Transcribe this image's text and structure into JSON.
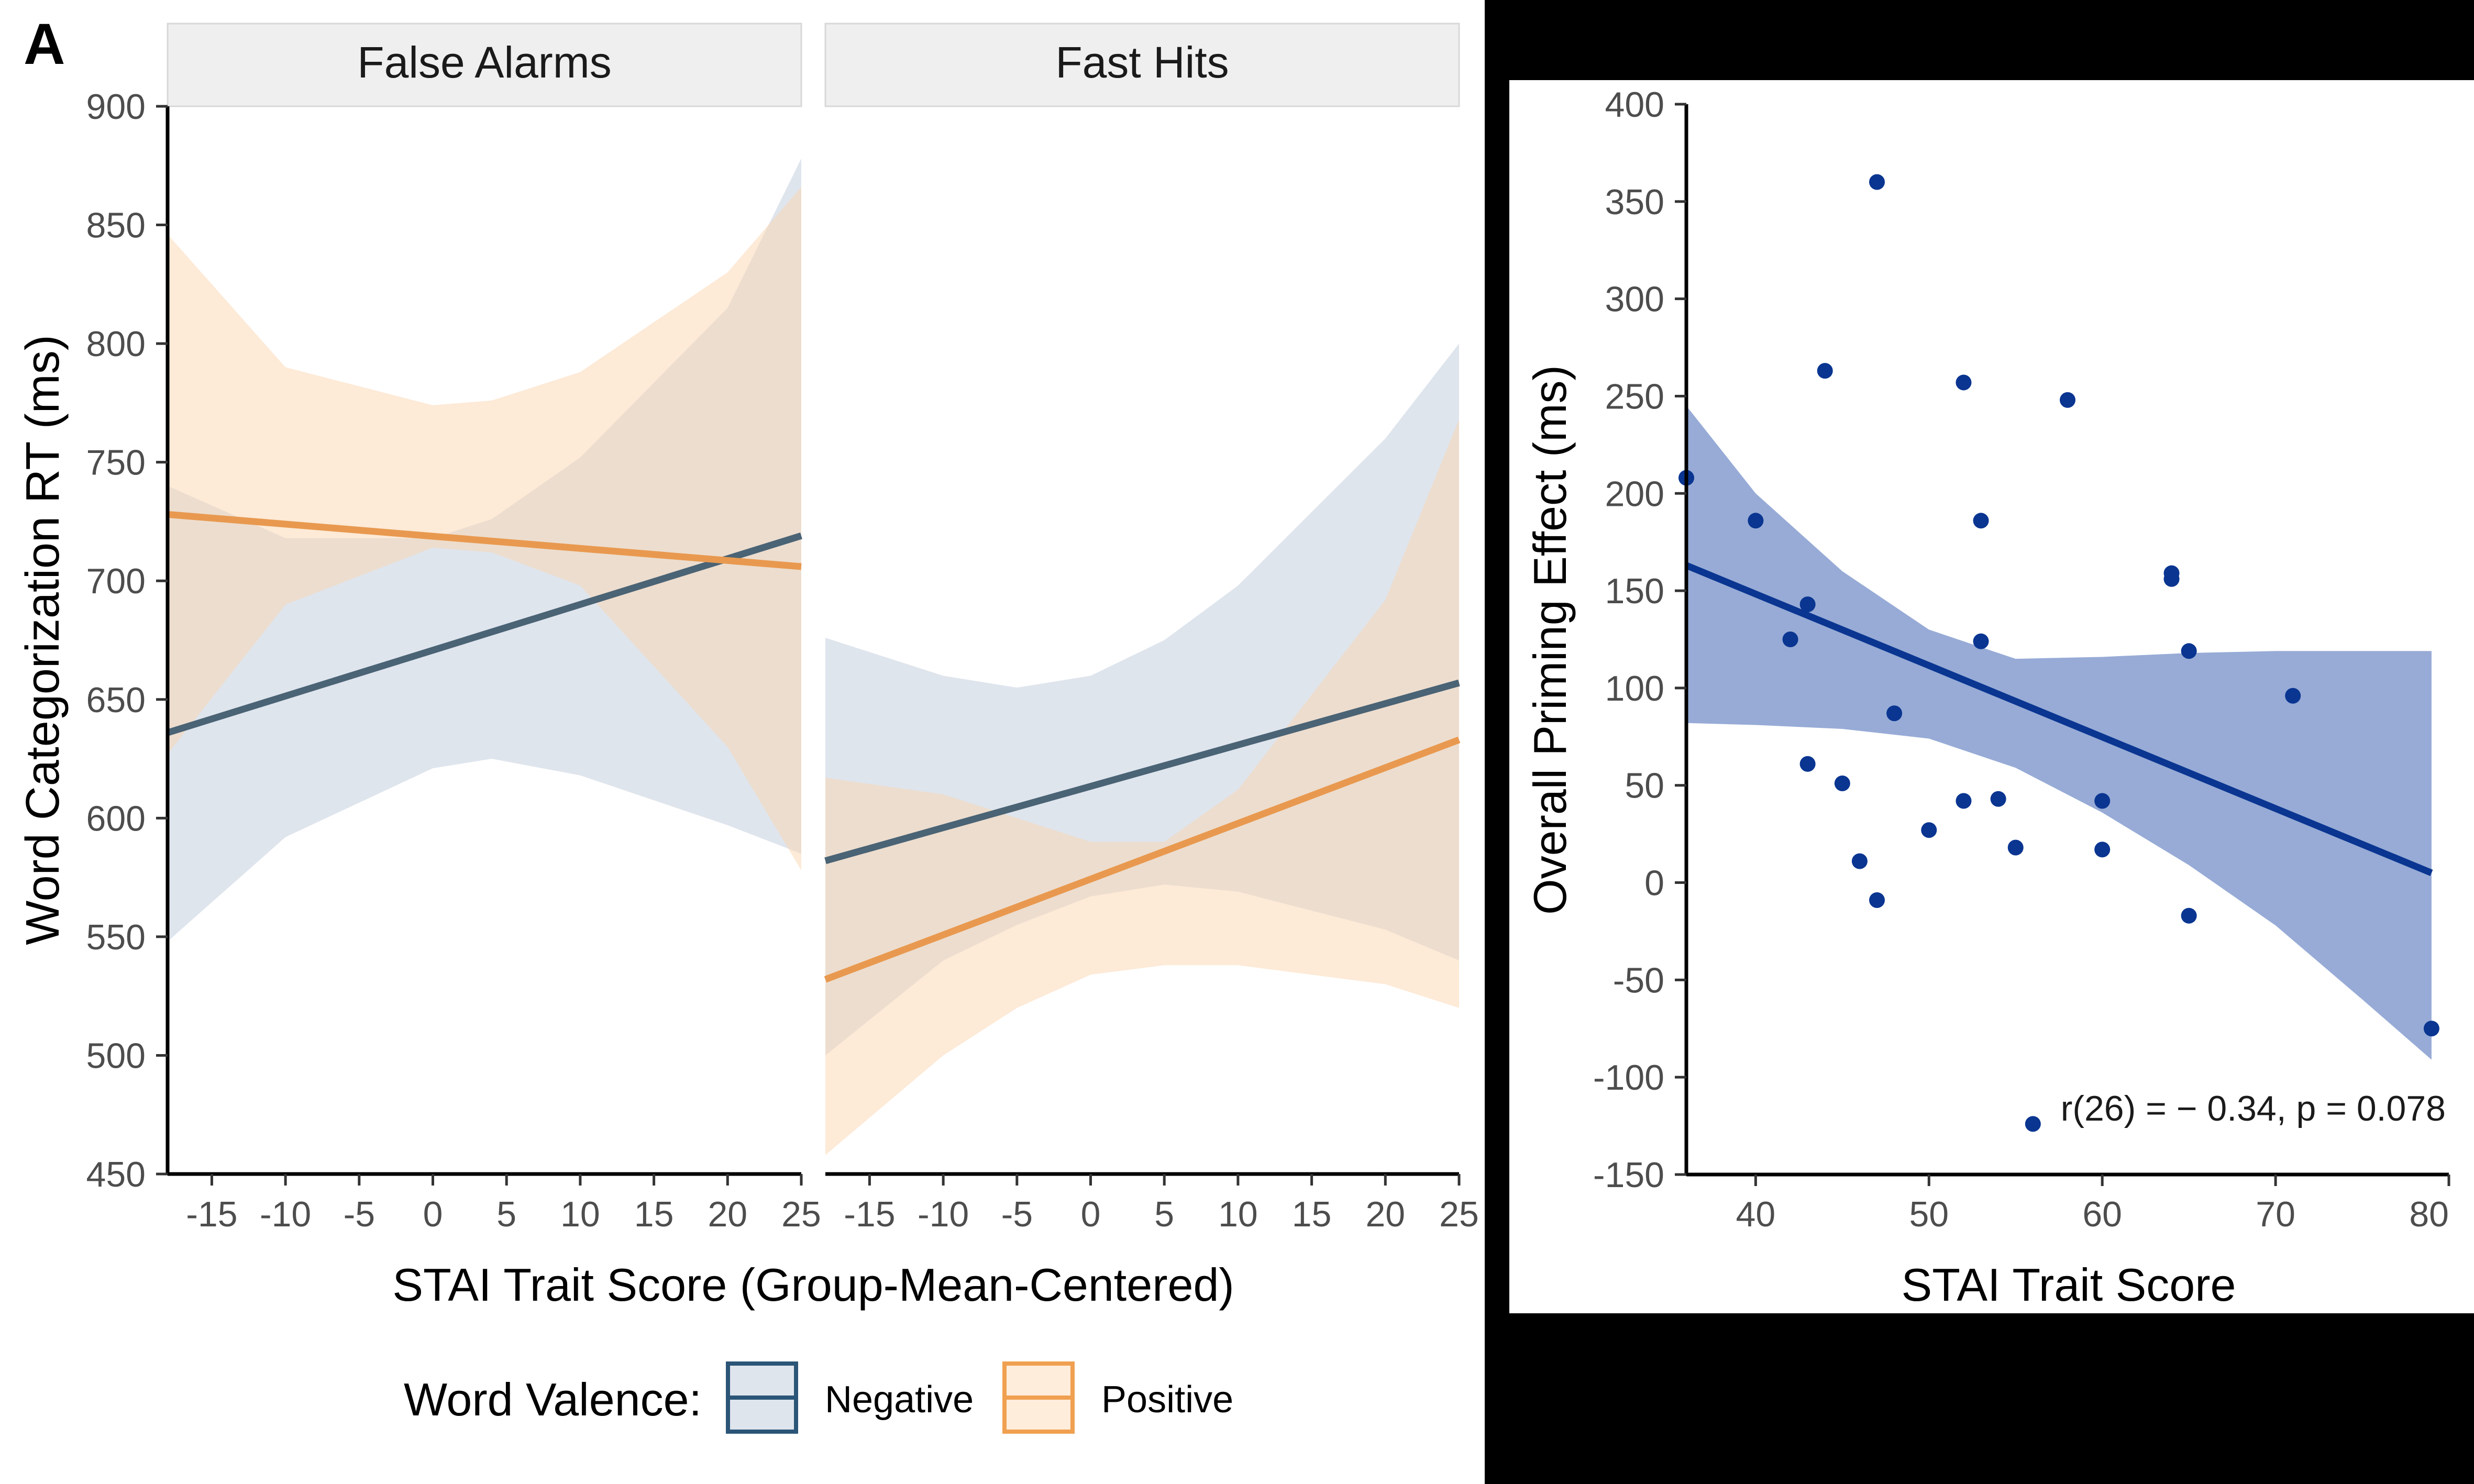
{
  "panel_label": "A",
  "colors": {
    "negative": "#4a6375",
    "positive": "#e8994f",
    "negative_band": "#b7c6d6",
    "positive_band": "#fcd6b0",
    "strip_bg": "#efefef",
    "scatter": "#0a3591",
    "scatter_band": "#6b87c4",
    "right_background": "#000000"
  },
  "chart_data": [
    {
      "type": "line",
      "panels": [
        "False Alarms",
        "Fast Hits"
      ],
      "ylabel": "Word Categorization RT (ms)",
      "xlabel": "STAI Trait Score (Group-Mean-Centered)",
      "xlim": [
        -18,
        25
      ],
      "ylim": [
        450,
        900
      ],
      "xticks": [
        -15,
        -10,
        -5,
        0,
        5,
        10,
        15,
        20,
        25
      ],
      "xtick_labels": [
        "-15",
        "-10",
        "-5",
        "0",
        "5",
        "10",
        "15",
        "20",
        "25"
      ],
      "yticks": [
        450,
        500,
        550,
        600,
        650,
        700,
        750,
        800,
        850,
        900
      ],
      "ytick_labels": [
        "450",
        "500",
        "550",
        "600",
        "650",
        "700",
        "750",
        "800",
        "850",
        "900"
      ],
      "legend": {
        "title": "Word Valence:",
        "position": "bottom",
        "items": [
          "Negative",
          "Positive"
        ]
      },
      "series": {
        "False Alarms": [
          {
            "name": "Negative",
            "x": [
              -18,
              25
            ],
            "y": [
              636,
              719
            ],
            "band_x": [
              -18,
              -10,
              0,
              4,
              10,
              20,
              25
            ],
            "band_lo": [
              548,
              592,
              621,
              625,
              618,
              597,
              585
            ],
            "band_hi": [
              740,
              718,
              718,
              726,
              752,
              815,
              878
            ]
          },
          {
            "name": "Positive",
            "x": [
              -18,
              25
            ],
            "y": [
              728,
              706
            ],
            "band_x": [
              -18,
              -10,
              0,
              4,
              10,
              20,
              25
            ],
            "band_lo": [
              627,
              690,
              714,
              712,
              698,
              630,
              578
            ],
            "band_hi": [
              846,
              790,
              774,
              776,
              788,
              830,
              866
            ]
          }
        ],
        "Fast Hits": [
          {
            "name": "Negative",
            "x": [
              -18,
              25
            ],
            "y": [
              582,
              657
            ],
            "band_x": [
              -18,
              -10,
              -5,
              0,
              5,
              10,
              20,
              25
            ],
            "band_lo": [
              500,
              540,
              555,
              567,
              572,
              569,
              553,
              540
            ],
            "band_hi": [
              676,
              660,
              655,
              660,
              675,
              698,
              760,
              800
            ]
          },
          {
            "name": "Positive",
            "x": [
              -18,
              25
            ],
            "y": [
              532,
              633
            ],
            "band_x": [
              -18,
              -10,
              -5,
              0,
              5,
              10,
              20,
              25
            ],
            "band_lo": [
              458,
              500,
              520,
              534,
              538,
              538,
              530,
              520
            ],
            "band_hi": [
              617,
              610,
              600,
              590,
              590,
              612,
              692,
              768
            ]
          }
        ]
      }
    },
    {
      "type": "scatter",
      "ylabel": "Overall Priming Effect (ms)",
      "xlabel": "STAI Trait Score",
      "xlim": [
        36,
        80
      ],
      "ylim": [
        -150,
        400
      ],
      "xticks": [
        40,
        50,
        60,
        70,
        80
      ],
      "xtick_labels": [
        "40",
        "50",
        "60",
        "70",
        "80"
      ],
      "yticks": [
        -150,
        -100,
        -50,
        0,
        50,
        100,
        150,
        200,
        250,
        300,
        350,
        400
      ],
      "ytick_labels": [
        "-150",
        "-100",
        "-50",
        "0",
        "50",
        "100",
        "150",
        "200",
        "250",
        "300",
        "350",
        "400"
      ],
      "annotation": "r(26) = − 0.34, p = 0.078",
      "points": [
        [
          36,
          208
        ],
        [
          40,
          186
        ],
        [
          42,
          125
        ],
        [
          43,
          143
        ],
        [
          43,
          61
        ],
        [
          44,
          263
        ],
        [
          45,
          51
        ],
        [
          46,
          11
        ],
        [
          47,
          360
        ],
        [
          47,
          -9
        ],
        [
          48,
          87
        ],
        [
          50,
          27
        ],
        [
          52,
          257
        ],
        [
          52,
          42
        ],
        [
          53,
          186
        ],
        [
          53,
          124
        ],
        [
          54,
          43
        ],
        [
          55,
          18
        ],
        [
          56,
          -124
        ],
        [
          58,
          248
        ],
        [
          60,
          42
        ],
        [
          60,
          17
        ],
        [
          64,
          159
        ],
        [
          64,
          156
        ],
        [
          65,
          119
        ],
        [
          65,
          -17
        ],
        [
          71,
          96
        ],
        [
          79,
          -75
        ]
      ],
      "fit": {
        "x": [
          36,
          79
        ],
        "y": [
          163,
          5
        ]
      },
      "band": {
        "x": [
          36,
          40,
          45,
          50,
          55,
          60,
          65,
          70,
          75,
          79
        ],
        "lo": [
          82,
          81,
          79,
          74,
          59,
          36,
          9,
          -22,
          -60,
          -91
        ],
        "hi": [
          245,
          200,
          160,
          130,
          115,
          116,
          118,
          119,
          119,
          119
        ]
      }
    }
  ]
}
